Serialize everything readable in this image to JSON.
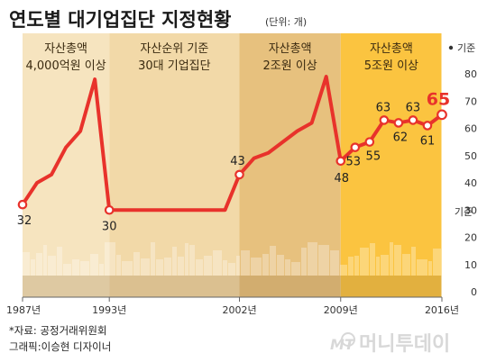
{
  "header": {
    "title": "연도별 대기업집단 지정현황",
    "unit": "(단위: 개)"
  },
  "periods": [
    {
      "line1": "자산총액",
      "line2": "4,000억원 이상",
      "start": 1987,
      "end": 1993,
      "color": "#f6e4bf"
    },
    {
      "line1": "자산순위 기준",
      "line2": "30대 기업집단",
      "start": 1993,
      "end": 2002,
      "color": "#f2d9a8"
    },
    {
      "line1": "자산총액",
      "line2": "2조원 이상",
      "start": 2002,
      "end": 2009,
      "color": "#e7c17e"
    },
    {
      "line1": "자산총액",
      "line2": "5조원 이상",
      "start": 2009,
      "end": 2016,
      "color": "#fbc440"
    }
  ],
  "axis_label": "기준",
  "x_tick_labels": [
    "1987년",
    "1993년",
    "2002년",
    "2009년",
    "2016년"
  ],
  "footer": {
    "source": "*자료: 공정거래위원회",
    "graphic": "그래픽:이승현 디자이너",
    "credit": "머니투데이",
    "credit_logo": "MT"
  },
  "chart_data": {
    "type": "line",
    "title": "연도별 대기업집단 지정현황",
    "unit": "(단위: 개)",
    "ylabel": "기준",
    "xlabel": "",
    "xlim": [
      1987,
      2016
    ],
    "ylim": [
      0,
      80
    ],
    "y_ticks": [
      0,
      10,
      20,
      30,
      40,
      50,
      60,
      70,
      80
    ],
    "x_ticks": [
      1987,
      1993,
      2002,
      2009,
      2016
    ],
    "grid": false,
    "series": [
      {
        "x": [
          1987,
          1988,
          1989,
          1990,
          1991,
          1992,
          1993,
          1994,
          1995,
          1996,
          1997,
          1998,
          1999,
          2000,
          2001,
          2002,
          2003,
          2004,
          2005,
          2006,
          2007,
          2008,
          2009,
          2010,
          2011,
          2012,
          2013,
          2014,
          2015,
          2016
        ],
        "values": [
          32,
          40,
          43,
          53,
          59,
          78,
          30,
          30,
          30,
          30,
          30,
          30,
          30,
          30,
          30,
          43,
          49,
          51,
          55,
          59,
          62,
          79,
          48,
          53,
          55,
          63,
          62,
          63,
          61,
          65
        ],
        "color": "#e8322b"
      }
    ],
    "labeled_points": [
      {
        "x": 1987,
        "y": 32,
        "label": "32"
      },
      {
        "x": 1993,
        "y": 30,
        "label": "30"
      },
      {
        "x": 2002,
        "y": 43,
        "label": "43"
      },
      {
        "x": 2009,
        "y": 48,
        "label": "48"
      },
      {
        "x": 2010,
        "y": 53,
        "label": "53"
      },
      {
        "x": 2011,
        "y": 55,
        "label": "55"
      },
      {
        "x": 2012,
        "y": 63,
        "label": "63"
      },
      {
        "x": 2013,
        "y": 62,
        "label": "62"
      },
      {
        "x": 2014,
        "y": 63,
        "label": "63"
      },
      {
        "x": 2015,
        "y": 61,
        "label": "61"
      },
      {
        "x": 2016,
        "y": 65,
        "label": "65",
        "highlight": true
      }
    ]
  }
}
